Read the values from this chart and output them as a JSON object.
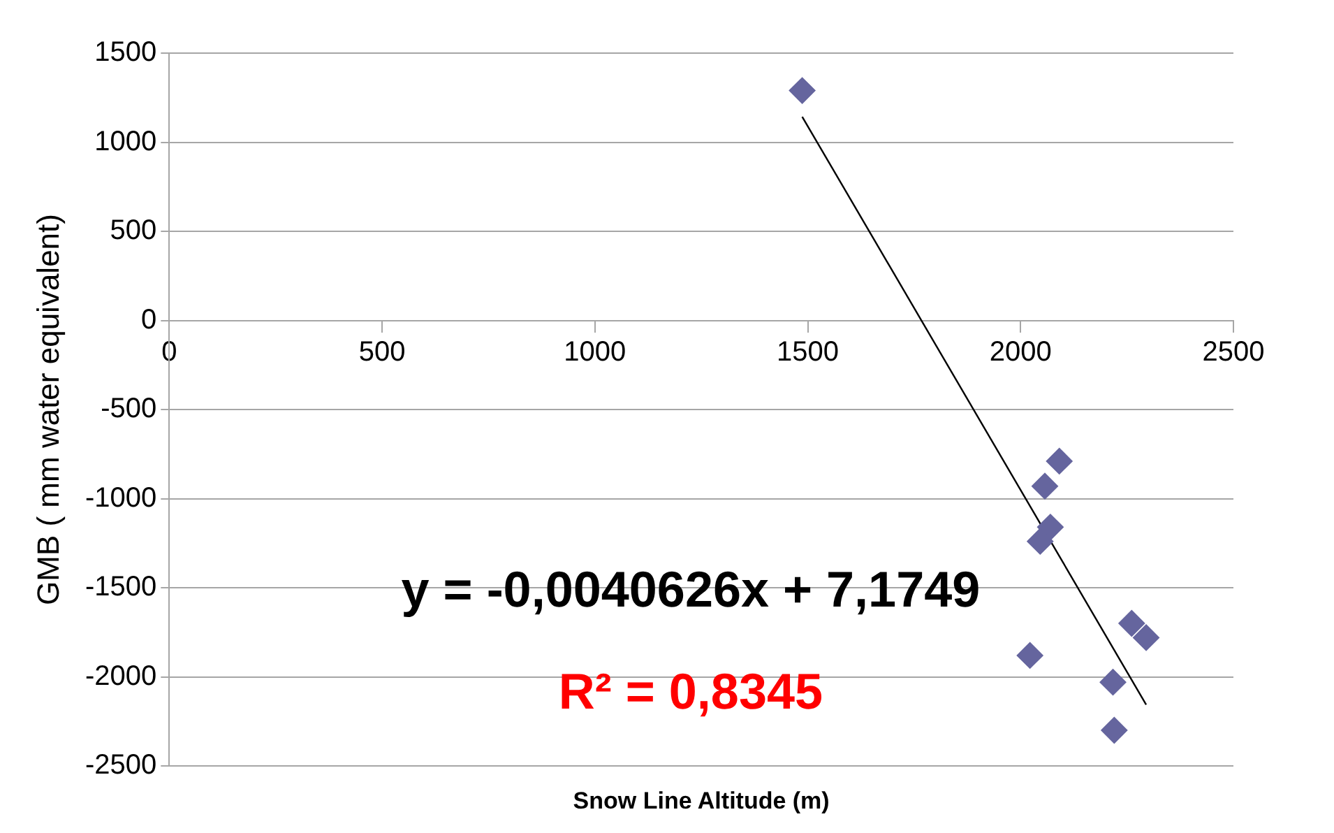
{
  "chart_data": {
    "type": "scatter",
    "xlabel": "Snow Line Altitude (m)",
    "ylabel": "GMB ( mm water equivalent)",
    "annotations": [
      "y = -0,0040626x + 7,1749",
      "R² = 0,8345"
    ],
    "series": [
      {
        "marker": "diamond",
        "color": "#65659e",
        "x": [
          1487,
          2091,
          2057,
          2070,
          2046,
          2022,
          2261,
          2295,
          2217,
          2220
        ],
        "values": [
          1290,
          -790,
          -930,
          -1160,
          -1240,
          -1880,
          -1700,
          -1780,
          -2030,
          -2300
        ]
      },
      {
        "type": "line",
        "marker": "none",
        "color": "#000000",
        "x": [
          1487,
          2295
        ],
        "values": [
          1143,
          -2156
        ]
      }
    ],
    "xlim": [
      0,
      2500
    ],
    "xticks": [
      0,
      500,
      1000,
      1500,
      2000,
      2500
    ],
    "ylim": [
      -2500,
      1500
    ],
    "yticks": [
      -2500,
      -2000,
      -1500,
      -1000,
      -500,
      0,
      500,
      1000,
      1500
    ],
    "grid": "y",
    "legend": false
  }
}
